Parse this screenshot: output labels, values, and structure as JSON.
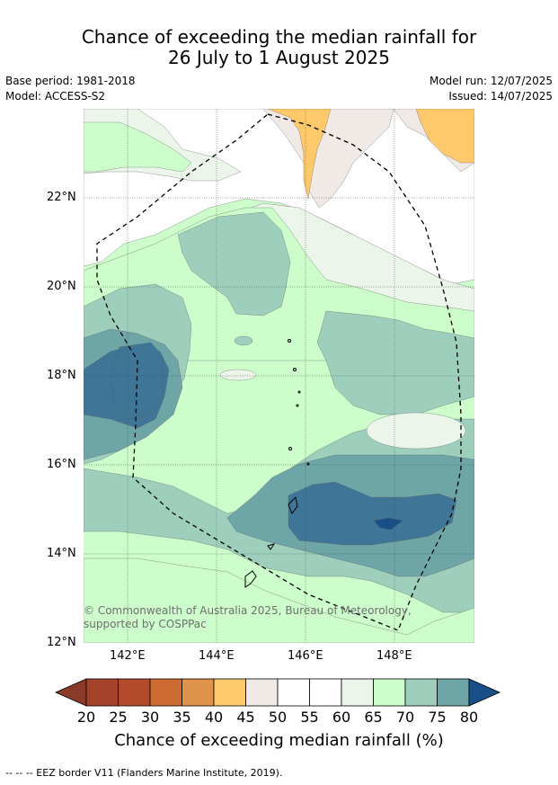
{
  "header": {
    "title_line1": "Chance of exceeding the median rainfall for",
    "title_line2": "26 July to 1 August 2025",
    "base_period": "Base period: 1981-2018",
    "model": "Model: ACCESS-S2",
    "model_run": "Model run: 12/07/2025",
    "issued": "Issued: 14/07/2025"
  },
  "map": {
    "lat_labels": [
      "22°N",
      "20°N",
      "18°N",
      "16°N",
      "14°N",
      "12°N"
    ],
    "lon_labels": [
      "142°E",
      "144°E",
      "146°E",
      "148°E"
    ],
    "copyright": "© Commonwealth of Australia 2025, Bureau of Meteorology, supported by COSPPac",
    "colors": {
      "c30_35": "#e0934a",
      "c35_40": "#fdc96a",
      "c40_45": "#f0e9e6",
      "c45_55": "#ffffff",
      "c55_60": "#ebf5ea",
      "c60_65": "#ccfdcb",
      "c65_70": "#9ecfbc",
      "c70_75": "#6ea5a6",
      "c75_80": "#3f7697",
      "c80p": "#184f86"
    }
  },
  "colorbar": {
    "ticks": [
      "20",
      "25",
      "30",
      "35",
      "40",
      "45",
      "50",
      "55",
      "60",
      "65",
      "70",
      "75",
      "80"
    ],
    "colors": [
      "#a5422a",
      "#b34b2a",
      "#cd6a32",
      "#e0934a",
      "#fdc96a",
      "#f0e9e6",
      "#ffffff",
      "#ffffff",
      "#ebf5ea",
      "#ccfdcb",
      "#9ecfbc",
      "#6ea5a6",
      "#3f7697"
    ],
    "under_color": "#8b3a2a",
    "over_color": "#184f86",
    "title": "Chance of exceeding median rainfall (%)"
  },
  "footnote": "--  --  -- EEZ border V11 (Flanders Marine Institute, 2019)."
}
